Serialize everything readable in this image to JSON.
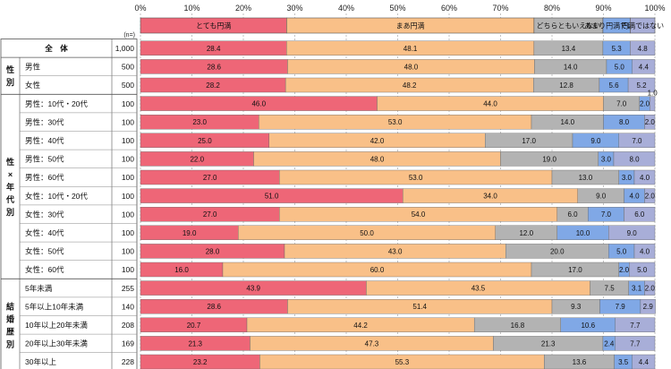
{
  "chart_data": {
    "type": "bar",
    "stacked": true,
    "orientation": "horizontal",
    "x_ticks": [
      "0%",
      "10%",
      "20%",
      "30%",
      "40%",
      "50%",
      "60%",
      "70%",
      "80%",
      "90%",
      "100%"
    ],
    "xlim": [
      0,
      100
    ],
    "n_header": "(n=)",
    "series": [
      {
        "name": "とても円満",
        "color": "#ee6677"
      },
      {
        "name": "まあ円満",
        "color": "#f9c088"
      },
      {
        "name": "どちらともいえない",
        "color": "#b3b3b3"
      },
      {
        "name": "あまり円満ではない",
        "color": "#80a8e6"
      },
      {
        "name": "円満ではない",
        "color": "#a8aed8"
      }
    ],
    "groups": [
      {
        "label": "",
        "rows": [
          {
            "label": "全　体",
            "n": "1,000",
            "values": [
              28.4,
              48.1,
              13.4,
              5.3,
              4.8
            ]
          }
        ]
      },
      {
        "label": "性別",
        "rows": [
          {
            "label": "男性",
            "n": "500",
            "values": [
              28.6,
              48.0,
              14.0,
              5.0,
              4.4
            ]
          },
          {
            "label": "女性",
            "n": "500",
            "values": [
              28.2,
              48.2,
              12.8,
              5.6,
              5.2
            ]
          }
        ]
      },
      {
        "label": "性×年代別",
        "rows": [
          {
            "label": "男性：10代・20代",
            "n": "100",
            "values": [
              46.0,
              44.0,
              7.0,
              2.0,
              1.0
            ]
          },
          {
            "label": "男性：30代",
            "n": "100",
            "values": [
              23.0,
              53.0,
              14.0,
              8.0,
              2.0
            ]
          },
          {
            "label": "男性：40代",
            "n": "100",
            "values": [
              25.0,
              42.0,
              17.0,
              9.0,
              7.0
            ]
          },
          {
            "label": "男性：50代",
            "n": "100",
            "values": [
              22.0,
              48.0,
              19.0,
              3.0,
              8.0
            ]
          },
          {
            "label": "男性：60代",
            "n": "100",
            "values": [
              27.0,
              53.0,
              13.0,
              3.0,
              4.0
            ]
          },
          {
            "label": "女性：10代・20代",
            "n": "100",
            "values": [
              51.0,
              34.0,
              9.0,
              4.0,
              2.0
            ]
          },
          {
            "label": "女性：30代",
            "n": "100",
            "values": [
              27.0,
              54.0,
              6.0,
              7.0,
              6.0
            ]
          },
          {
            "label": "女性：40代",
            "n": "100",
            "values": [
              19.0,
              50.0,
              12.0,
              10.0,
              9.0
            ]
          },
          {
            "label": "女性：50代",
            "n": "100",
            "values": [
              28.0,
              43.0,
              20.0,
              5.0,
              4.0
            ]
          },
          {
            "label": "女性：60代",
            "n": "100",
            "values": [
              16.0,
              60.0,
              17.0,
              2.0,
              5.0
            ]
          }
        ]
      },
      {
        "label": "結婚歴別",
        "rows": [
          {
            "label": "5年未満",
            "n": "255",
            "values": [
              43.9,
              43.5,
              7.5,
              3.1,
              2.0
            ]
          },
          {
            "label": "5年以上10年未満",
            "n": "140",
            "values": [
              28.6,
              51.4,
              9.3,
              7.9,
              2.9
            ]
          },
          {
            "label": "10年以上20年未満",
            "n": "208",
            "values": [
              20.7,
              44.2,
              16.8,
              10.6,
              7.7
            ]
          },
          {
            "label": "20年以上30年未満",
            "n": "169",
            "values": [
              21.3,
              47.3,
              21.3,
              2.4,
              7.7
            ]
          },
          {
            "label": "30年以上",
            "n": "228",
            "values": [
              23.2,
              55.3,
              13.6,
              3.5,
              4.4
            ]
          }
        ]
      }
    ]
  }
}
